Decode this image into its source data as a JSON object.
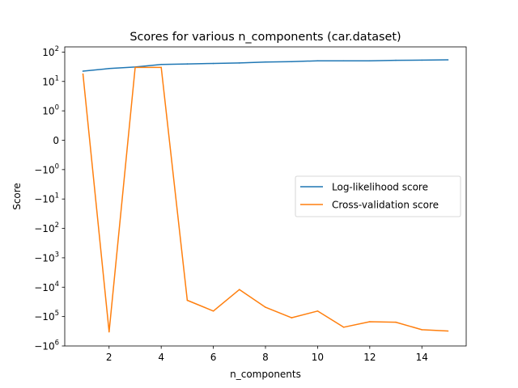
{
  "chart_data": {
    "type": "line",
    "title": "Scores for various n_components (car.dataset)",
    "xlabel": "n_components",
    "ylabel": "Score",
    "xlim": [
      0.3,
      15.7
    ],
    "x_ticks": [
      2,
      4,
      6,
      8,
      10,
      12,
      14
    ],
    "y_scale": "symlog",
    "ylim": [
      -1000000,
      150
    ],
    "y_ticks": [
      {
        "value": 100,
        "base": "10",
        "exp": "2"
      },
      {
        "value": 10,
        "base": "10",
        "exp": "1"
      },
      {
        "value": 1,
        "base": "10",
        "exp": "0"
      },
      {
        "value": 0,
        "base": "0",
        "exp": ""
      },
      {
        "value": -1,
        "base": "−10",
        "exp": "0"
      },
      {
        "value": -10,
        "base": "−10",
        "exp": "1"
      },
      {
        "value": -100,
        "base": "−10",
        "exp": "2"
      },
      {
        "value": -1000,
        "base": "−10",
        "exp": "3"
      },
      {
        "value": -10000,
        "base": "−10",
        "exp": "4"
      },
      {
        "value": -100000,
        "base": "−10",
        "exp": "5"
      },
      {
        "value": -1000000,
        "base": "−10",
        "exp": "6"
      }
    ],
    "grid": false,
    "legend_position": "center-right",
    "x": [
      1,
      2,
      3,
      4,
      5,
      6,
      7,
      8,
      9,
      10,
      11,
      12,
      13,
      14,
      15
    ],
    "series": [
      {
        "name": "Log-likelihood score",
        "color": "#1f77b4",
        "values": [
          22.5,
          27.5,
          31.0,
          38.0,
          39.5,
          41.0,
          42.5,
          46.0,
          47.0,
          50.5,
          50.5,
          50.5,
          52.5,
          53.0,
          54.5
        ]
      },
      {
        "name": "Cross-validation score",
        "color": "#ff7f0e",
        "values": [
          18.0,
          -330000,
          30.0,
          30.0,
          -28000,
          -65000,
          -12000,
          -48000,
          -110000,
          -65000,
          -230000,
          -150000,
          -155000,
          -280000,
          -310000
        ]
      }
    ]
  }
}
